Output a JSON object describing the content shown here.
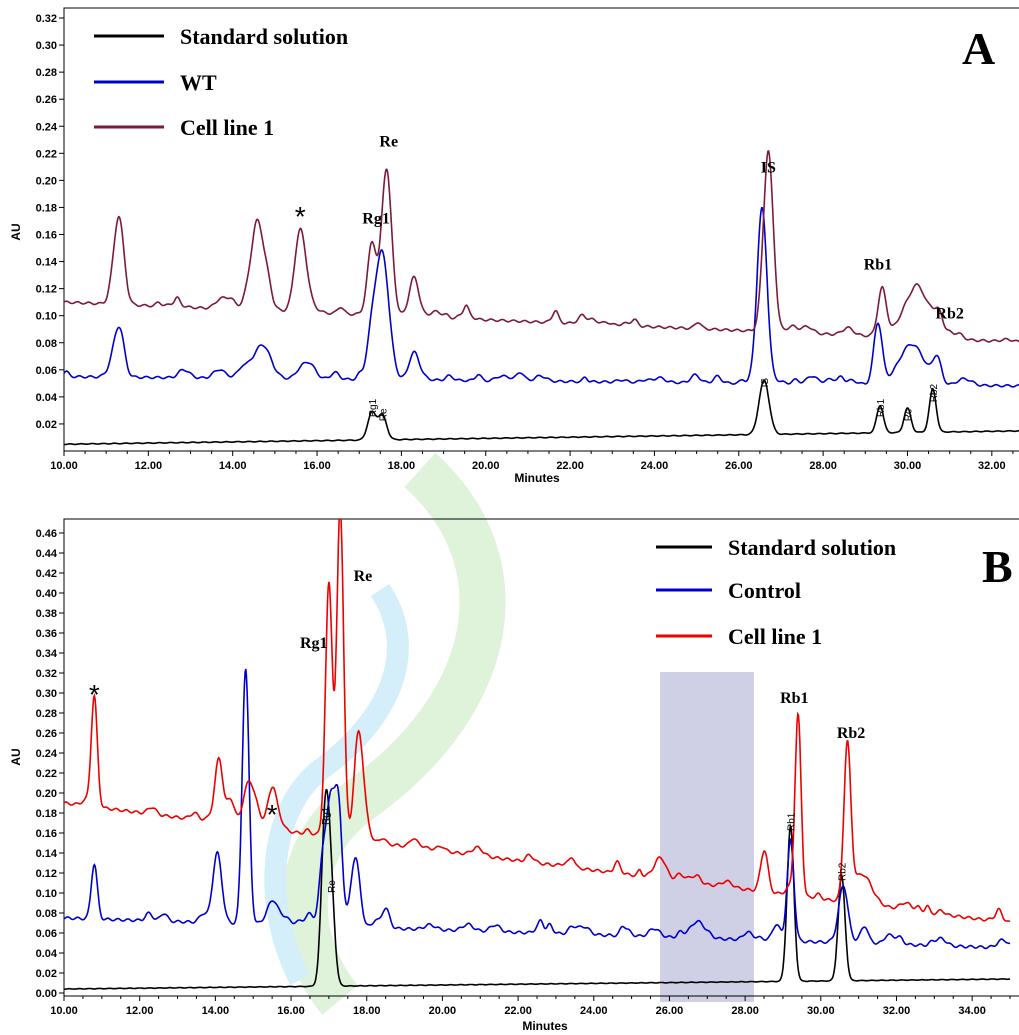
{
  "chart_data": [
    {
      "type": "line",
      "panel_letter": "A",
      "xlabel": "Minutes",
      "ylabel": "AU",
      "xlim": [
        10,
        33
      ],
      "ylim": [
        0,
        0.32
      ],
      "x_ticks": [
        "10.00",
        "12.00",
        "14.00",
        "16.00",
        "18.00",
        "20.00",
        "22.00",
        "24.00",
        "26.00",
        "28.00",
        "30.00",
        "32.00"
      ],
      "y_ticks": [
        "0.02",
        "0.04",
        "0.06",
        "0.08",
        "0.10",
        "0.12",
        "0.14",
        "0.16",
        "0.18",
        "0.20",
        "0.22",
        "0.24",
        "0.26",
        "0.28",
        "0.30",
        "0.32"
      ],
      "legend": [
        "Standard solution",
        "WT",
        "Cell line 1"
      ],
      "series": [
        {
          "name": "Standard solution",
          "color": "#000000",
          "baseline": 0.005,
          "end_baseline": 0.015,
          "peaks": [
            [
              17.3,
              0.02,
              0.1
            ],
            [
              17.55,
              0.018,
              0.1
            ],
            [
              26.6,
              0.04,
              0.12
            ],
            [
              29.35,
              0.02,
              0.08
            ],
            [
              30.0,
              0.018,
              0.08
            ],
            [
              30.6,
              0.032,
              0.08
            ]
          ]
        },
        {
          "name": "WT",
          "color": "#0000cc",
          "baseline": 0.055,
          "end_baseline": 0.048,
          "peaks": [
            [
              11.3,
              0.035,
              0.12
            ],
            [
              14.7,
              0.025,
              0.2
            ],
            [
              15.8,
              0.012,
              0.15
            ],
            [
              17.3,
              0.03,
              0.12
            ],
            [
              17.55,
              0.085,
              0.15
            ],
            [
              18.3,
              0.02,
              0.12
            ],
            [
              26.55,
              0.125,
              0.12
            ],
            [
              29.3,
              0.045,
              0.1
            ],
            [
              30.1,
              0.03,
              0.3
            ],
            [
              30.7,
              0.018,
              0.1
            ]
          ]
        },
        {
          "name": "Cell line 1",
          "color": "#7b1a3a",
          "baseline": 0.11,
          "end_baseline": 0.08,
          "peaks": [
            [
              11.3,
              0.065,
              0.12
            ],
            [
              14.6,
              0.058,
              0.18
            ],
            [
              15.6,
              0.06,
              0.13
            ],
            [
              17.3,
              0.05,
              0.1
            ],
            [
              17.65,
              0.105,
              0.12
            ],
            [
              18.3,
              0.025,
              0.12
            ],
            [
              26.7,
              0.13,
              0.12
            ],
            [
              29.4,
              0.035,
              0.1
            ],
            [
              30.2,
              0.035,
              0.3
            ],
            [
              30.75,
              0.015,
              0.1
            ]
          ]
        }
      ],
      "peak_labels": [
        {
          "text": "Re",
          "x": 17.7,
          "y": 0.225,
          "size": "big"
        },
        {
          "text": "Rg1",
          "x": 17.4,
          "y": 0.168,
          "size": "big"
        },
        {
          "text": "IS",
          "x": 26.7,
          "y": 0.206,
          "size": "big"
        },
        {
          "text": "Rb1",
          "x": 29.3,
          "y": 0.134,
          "size": "big"
        },
        {
          "text": "Rb2",
          "x": 31.0,
          "y": 0.098,
          "size": "big"
        },
        {
          "text": "*",
          "x": 15.6,
          "y": 0.178,
          "size": "star"
        },
        {
          "text": "Rg1",
          "x": 17.3,
          "y": 0.025,
          "size": "small"
        },
        {
          "text": "Re",
          "x": 17.55,
          "y": 0.022,
          "size": "small"
        },
        {
          "text": "IS",
          "x": 26.6,
          "y": 0.047,
          "size": "small"
        },
        {
          "text": "Rb1",
          "x": 29.35,
          "y": 0.025,
          "size": "small"
        },
        {
          "text": "Rc",
          "x": 30.0,
          "y": 0.022,
          "size": "small"
        },
        {
          "text": "Rb2",
          "x": 30.6,
          "y": 0.036,
          "size": "small"
        }
      ]
    },
    {
      "type": "line",
      "panel_letter": "B",
      "xlabel": "Minutes",
      "ylabel": "AU",
      "xlim": [
        10,
        35
      ],
      "ylim": [
        0,
        0.46
      ],
      "x_ticks": [
        "10.00",
        "12.00",
        "14.00",
        "16.00",
        "18.00",
        "20.00",
        "22.00",
        "24.00",
        "26.00",
        "28.00",
        "30.00",
        "32.00",
        "34.00"
      ],
      "y_ticks": [
        "0.00",
        "0.02",
        "0.04",
        "0.06",
        "0.08",
        "0.10",
        "0.12",
        "0.14",
        "0.16",
        "0.18",
        "0.20",
        "0.22",
        "0.24",
        "0.26",
        "0.28",
        "0.30",
        "0.32",
        "0.34",
        "0.36",
        "0.38",
        "0.40",
        "0.42",
        "0.44",
        "0.46"
      ],
      "legend": [
        "Standard solution",
        "Control",
        "Cell line 1"
      ],
      "series": [
        {
          "name": "Standard solution",
          "color": "#000000",
          "baseline": 0.004,
          "end_baseline": 0.014,
          "peaks": [
            [
              16.9,
              0.16,
              0.1
            ],
            [
              17.05,
              0.09,
              0.1
            ],
            [
              29.2,
              0.155,
              0.09
            ],
            [
              30.55,
              0.105,
              0.09
            ]
          ]
        },
        {
          "name": "Control",
          "color": "#0000cc",
          "baseline": 0.075,
          "end_baseline": 0.045,
          "peaks": [
            [
              10.8,
              0.055,
              0.08
            ],
            [
              14.05,
              0.07,
              0.12
            ],
            [
              14.8,
              0.255,
              0.09
            ],
            [
              15.5,
              0.02,
              0.15
            ],
            [
              16.85,
              0.07,
              0.1
            ],
            [
              17.05,
              0.11,
              0.1
            ],
            [
              17.25,
              0.12,
              0.1
            ],
            [
              17.7,
              0.07,
              0.12
            ],
            [
              18.5,
              0.02,
              0.1
            ],
            [
              29.2,
              0.1,
              0.09
            ],
            [
              30.6,
              0.055,
              0.12
            ]
          ]
        },
        {
          "name": "Cell line 1",
          "color": "#ee0000",
          "baseline": 0.19,
          "end_baseline": 0.07,
          "peaks": [
            [
              10.8,
              0.11,
              0.08
            ],
            [
              14.1,
              0.06,
              0.1
            ],
            [
              14.4,
              0.025,
              0.1
            ],
            [
              14.9,
              0.04,
              0.15
            ],
            [
              15.5,
              0.04,
              0.12
            ],
            [
              17.0,
              0.25,
              0.09
            ],
            [
              17.3,
              0.33,
              0.09
            ],
            [
              17.8,
              0.1,
              0.12
            ],
            [
              28.5,
              0.035,
              0.1
            ],
            [
              29.4,
              0.18,
              0.08
            ],
            [
              30.7,
              0.15,
              0.09
            ],
            [
              31.1,
              0.03,
              0.25
            ]
          ]
        }
      ],
      "peak_labels": [
        {
          "text": "Re",
          "x": 17.9,
          "y": 0.412,
          "size": "big"
        },
        {
          "text": "Rg1",
          "x": 16.6,
          "y": 0.345,
          "size": "big"
        },
        {
          "text": "Rb1",
          "x": 29.3,
          "y": 0.29,
          "size": "big"
        },
        {
          "text": "Rb2",
          "x": 30.8,
          "y": 0.255,
          "size": "big"
        },
        {
          "text": "*",
          "x": 10.8,
          "y": 0.305,
          "size": "star"
        },
        {
          "text": "*",
          "x": 15.5,
          "y": 0.185,
          "size": "star"
        },
        {
          "text": "Rg1",
          "x": 16.9,
          "y": 0.168,
          "size": "small"
        },
        {
          "text": "Re",
          "x": 17.05,
          "y": 0.1,
          "size": "small"
        },
        {
          "text": "Rb1",
          "x": 29.2,
          "y": 0.162,
          "size": "small"
        },
        {
          "text": "Rb2",
          "x": 30.55,
          "y": 0.112,
          "size": "small"
        }
      ]
    }
  ]
}
